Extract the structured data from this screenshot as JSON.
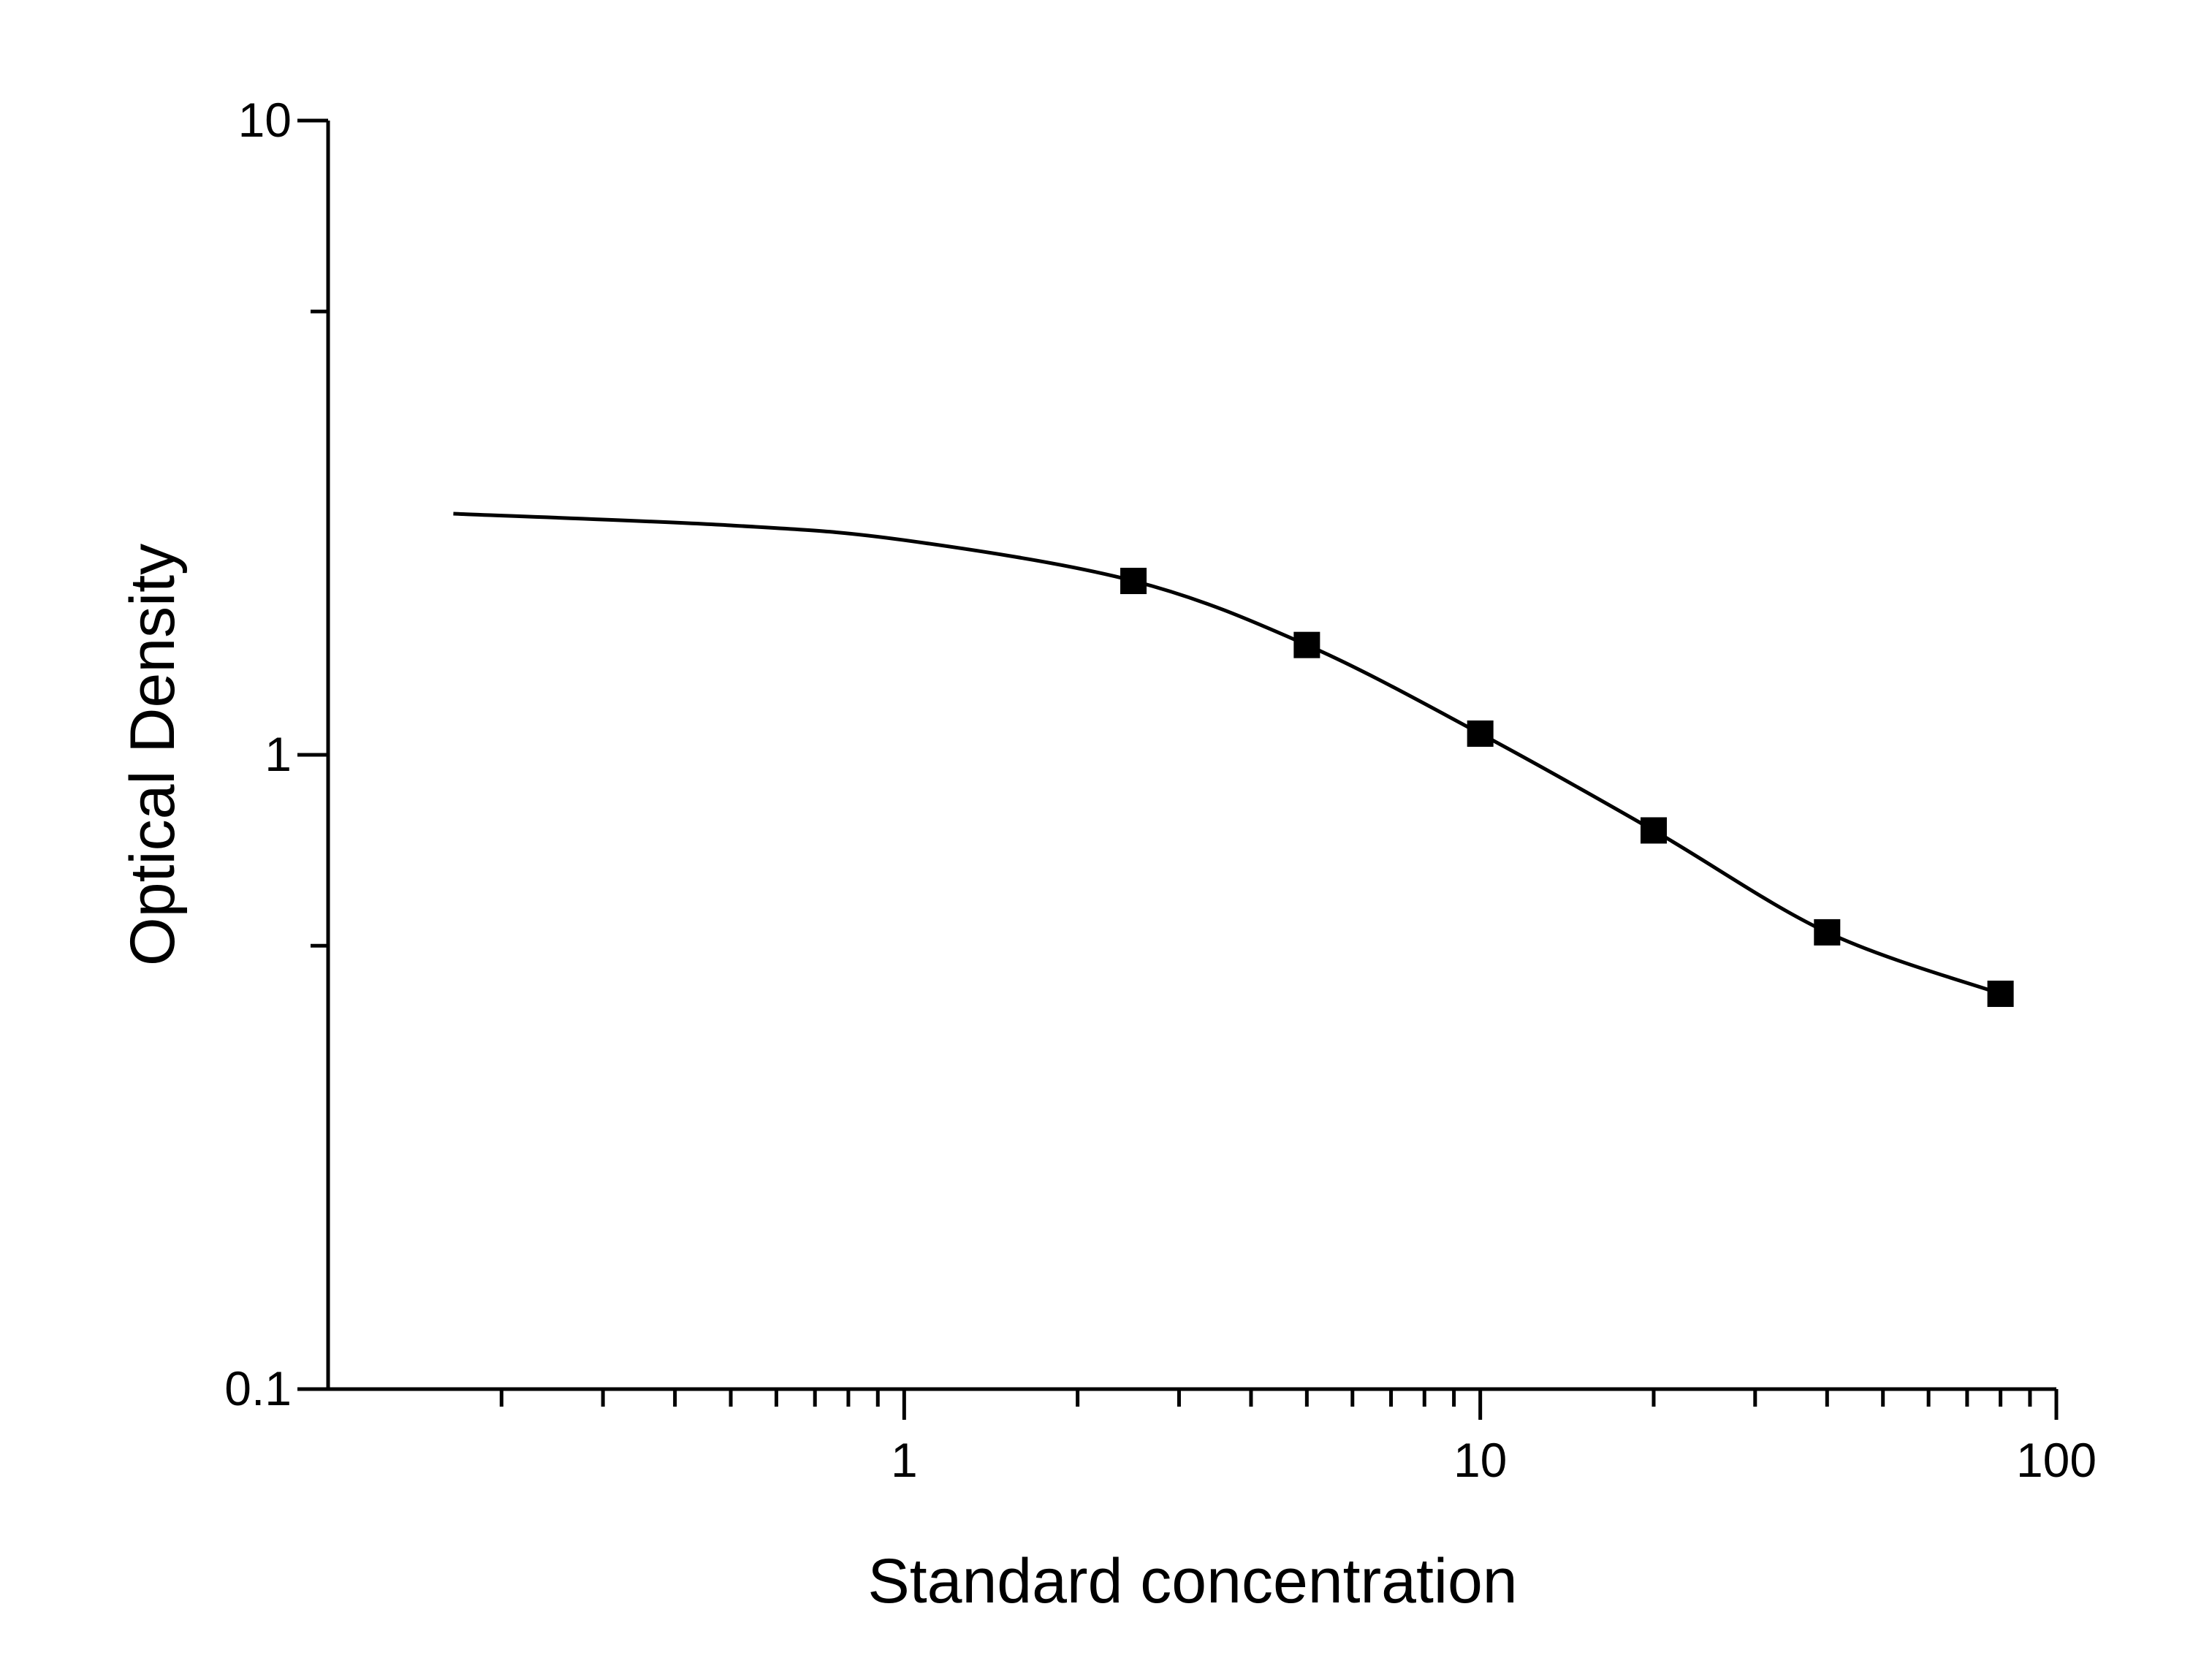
{
  "chart_data": {
    "type": "scatter",
    "xlabel": "Standard concentration",
    "ylabel": "Optical Density",
    "x_scale": "log",
    "y_scale": "log",
    "xlim": [
      0.1,
      100
    ],
    "ylim": [
      0.1,
      10
    ],
    "x_ticks": [
      {
        "value": 1,
        "label": "1"
      },
      {
        "value": 10,
        "label": "10"
      },
      {
        "value": 100,
        "label": "100"
      }
    ],
    "y_ticks": [
      {
        "value": 0.1,
        "label": "0.1"
      },
      {
        "value": 1,
        "label": "1"
      },
      {
        "value": 10,
        "label": "10"
      }
    ],
    "grid": false,
    "legend": "none",
    "series": [
      {
        "marker": "square",
        "color": "#000000",
        "points": [
          {
            "x": 2.5,
            "y": 1.88
          },
          {
            "x": 5,
            "y": 1.49
          },
          {
            "x": 10,
            "y": 1.08
          },
          {
            "x": 20,
            "y": 0.76
          },
          {
            "x": 40,
            "y": 0.525
          },
          {
            "x": 80,
            "y": 0.42
          }
        ]
      }
    ],
    "fit_curve": {
      "color": "#000000",
      "points": [
        {
          "x": 0.165,
          "y": 2.4
        },
        {
          "x": 0.5,
          "y": 2.3
        },
        {
          "x": 1,
          "y": 2.18
        },
        {
          "x": 2.5,
          "y": 1.88
        },
        {
          "x": 5,
          "y": 1.49
        },
        {
          "x": 10,
          "y": 1.08
        },
        {
          "x": 20,
          "y": 0.76
        },
        {
          "x": 40,
          "y": 0.525
        },
        {
          "x": 80,
          "y": 0.42
        }
      ]
    }
  }
}
